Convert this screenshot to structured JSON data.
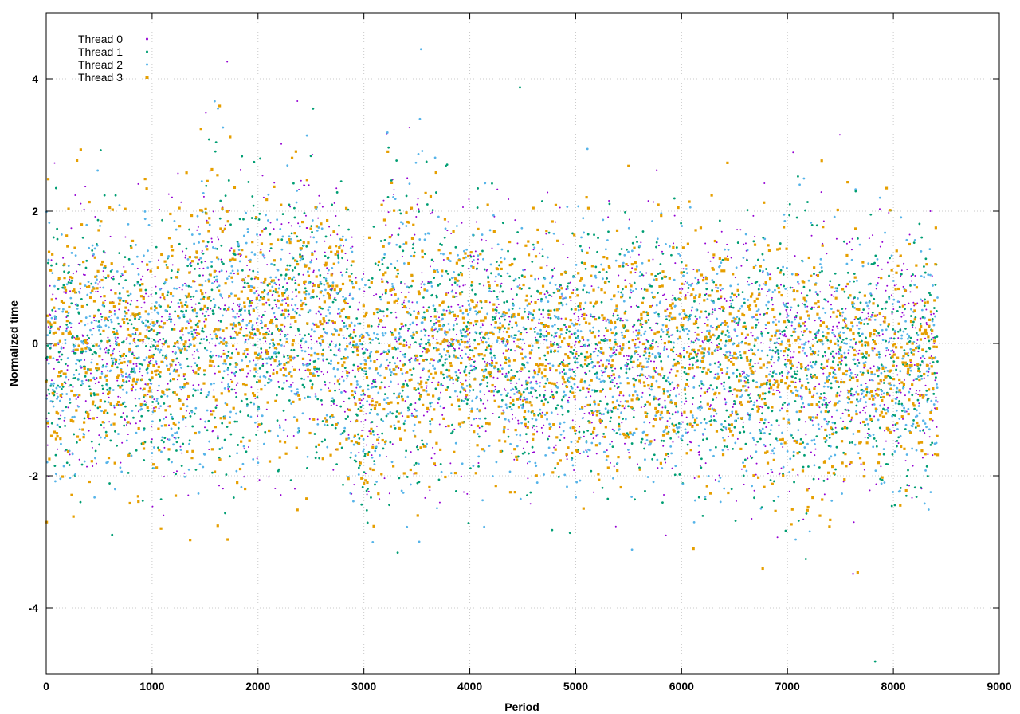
{
  "chart_data": {
    "type": "scatter",
    "title": "",
    "xlabel": "Period",
    "ylabel": "Normalized time",
    "xlim": [
      0,
      9000
    ],
    "ylim": [
      -5,
      5
    ],
    "x_ticks": [
      0,
      1000,
      2000,
      3000,
      4000,
      5000,
      6000,
      7000,
      8000,
      9000
    ],
    "y_ticks": [
      -4,
      -2,
      0,
      2,
      4
    ],
    "grid": true,
    "legend_position": "top-left",
    "x_extent": [
      0,
      8420
    ],
    "series": [
      {
        "name": "Thread 0",
        "color": "#9400d3",
        "marker": "dot",
        "points": 2100
      },
      {
        "name": "Thread 1",
        "color": "#009e73",
        "marker": "dot",
        "points": 2100
      },
      {
        "name": "Thread 2",
        "color": "#56b4e9",
        "marker": "dot",
        "points": 2100
      },
      {
        "name": "Thread 3",
        "color": "#e69f00",
        "marker": "square",
        "points": 2100
      }
    ],
    "distribution_note_excluded": true
  }
}
